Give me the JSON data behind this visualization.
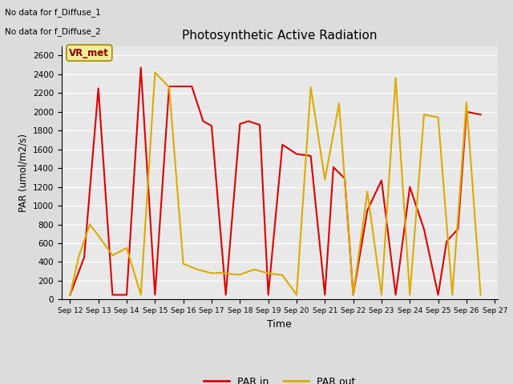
{
  "title": "Photosynthetic Active Radiation",
  "xlabel": "Time",
  "ylabel": "PAR (umol/m2/s)",
  "text_no_data_1": "No data for f_Diffuse_1",
  "text_no_data_2": "No data for f_Diffuse_2",
  "legend_label": "VR_met",
  "par_in_x": [
    12,
    12.5,
    13,
    13.5,
    14,
    14.5,
    15,
    15.5,
    16,
    16.3,
    16.7,
    17,
    17.5,
    18,
    18.3,
    18.7,
    19,
    19.5,
    20,
    20.5,
    21,
    21.3,
    21.7,
    22,
    22.5,
    23,
    23.5,
    24,
    24.5,
    25,
    25.3,
    25.7,
    26,
    26.5
  ],
  "par_in_y": [
    50,
    450,
    2250,
    50,
    50,
    2470,
    50,
    2270,
    2270,
    2270,
    1900,
    1850,
    50,
    1870,
    1900,
    1860,
    50,
    1650,
    1550,
    1530,
    50,
    1410,
    1290,
    50,
    950,
    1270,
    50,
    1200,
    750,
    50,
    620,
    750,
    2000,
    1970
  ],
  "par_out_x": [
    12,
    12.3,
    12.7,
    13,
    13.5,
    14,
    14.5,
    15,
    15.5,
    16,
    16.5,
    17,
    17.3,
    17.7,
    18,
    18.5,
    19,
    19.5,
    20,
    20.5,
    21,
    21.5,
    22,
    22.5,
    23,
    23.5,
    24,
    24.5,
    25,
    25.5,
    26,
    26.5
  ],
  "par_out_y": [
    50,
    450,
    800,
    680,
    470,
    550,
    50,
    2420,
    2260,
    380,
    320,
    280,
    285,
    270,
    265,
    320,
    280,
    260,
    50,
    2260,
    1280,
    2090,
    50,
    1150,
    50,
    2360,
    50,
    1970,
    1940,
    50,
    2100,
    50
  ],
  "color_PAR_in": "#dd0000",
  "color_PAR_out": "#ddaa00",
  "ylim": [
    0,
    2700
  ],
  "xlim": [
    11.7,
    27.1
  ],
  "plot_bg_color": "#e8e8e8",
  "fig_bg_color": "#dcdcdc"
}
